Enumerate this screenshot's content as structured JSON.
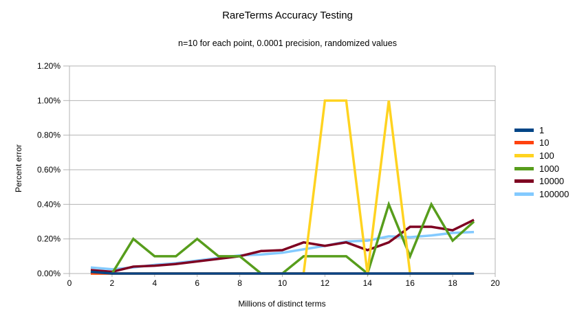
{
  "title": "RareTerms Accuracy Testing",
  "subtitle": "n=10 for each point, 0.0001 precision, randomized values",
  "chart_data": {
    "type": "line",
    "title": "RareTerms Accuracy Testing",
    "subtitle": "n=10 for each point, 0.0001 precision, randomized values",
    "xlabel": "Millions of distinct terms",
    "ylabel": "Percent error",
    "xlim": [
      0,
      20
    ],
    "ylim": [
      0,
      1.2
    ],
    "y_unit": "percent",
    "grid": "horizontal-only",
    "legend_position": "right",
    "x_ticks": [
      0,
      2,
      4,
      6,
      8,
      10,
      12,
      14,
      16,
      18,
      20
    ],
    "y_ticks": [
      {
        "value": 0.0,
        "label": "0.00%"
      },
      {
        "value": 0.2,
        "label": "0.20%"
      },
      {
        "value": 0.4,
        "label": "0.40%"
      },
      {
        "value": 0.6,
        "label": "0.60%"
      },
      {
        "value": 0.8,
        "label": "0.80%"
      },
      {
        "value": 1.0,
        "label": "1.00%"
      },
      {
        "value": 1.2,
        "label": "1.20%"
      }
    ],
    "x": [
      1,
      2,
      3,
      4,
      5,
      6,
      7,
      8,
      9,
      10,
      11,
      12,
      13,
      14,
      15,
      16,
      17,
      18,
      19
    ],
    "series": [
      {
        "name": "1",
        "color": "#004586",
        "values": [
          0.01,
          0,
          0,
          0,
          0,
          0,
          0,
          0,
          0,
          0,
          0,
          0,
          0,
          0,
          0,
          0,
          0,
          0,
          0
        ]
      },
      {
        "name": "10",
        "color": "#ff420e",
        "values": [
          0,
          0,
          0,
          0,
          0,
          0,
          0,
          0,
          0,
          0,
          0,
          0,
          0,
          0,
          0,
          0,
          0,
          0,
          0
        ]
      },
      {
        "name": "100",
        "color": "#ffd320",
        "values": [
          0,
          0,
          0,
          0,
          0,
          0,
          0,
          0,
          0,
          0,
          0,
          1.0,
          1.0,
          0,
          1.0,
          0,
          0,
          0,
          0
        ]
      },
      {
        "name": "1000",
        "color": "#579d1c",
        "values": [
          0.01,
          0,
          0.2,
          0.1,
          0.1,
          0.2,
          0.1,
          0.1,
          0,
          0,
          0.1,
          0.1,
          0.1,
          0,
          0.4,
          0.1,
          0.4,
          0.19,
          0.3
        ]
      },
      {
        "name": "10000",
        "color": "#7e0021",
        "values": [
          0.02,
          0.01,
          0.04,
          0.045,
          0.055,
          0.07,
          0.085,
          0.1,
          0.13,
          0.135,
          0.18,
          0.16,
          0.18,
          0.135,
          0.18,
          0.27,
          0.27,
          0.25,
          0.31
        ]
      },
      {
        "name": "100000",
        "color": "#83caff",
        "values": [
          0.035,
          0.025,
          0.035,
          0.05,
          0.06,
          0.075,
          0.09,
          0.105,
          0.11,
          0.12,
          0.14,
          0.16,
          0.185,
          0.19,
          0.215,
          0.21,
          0.22,
          0.235,
          0.24
        ]
      }
    ],
    "draw_order_note": "series rendered in reverse legend order; first legend entry on top",
    "colors": {
      "grid": "#b3b3b3",
      "axis": "#b3b3b3",
      "text": "#000000",
      "background": "#ffffff"
    }
  }
}
